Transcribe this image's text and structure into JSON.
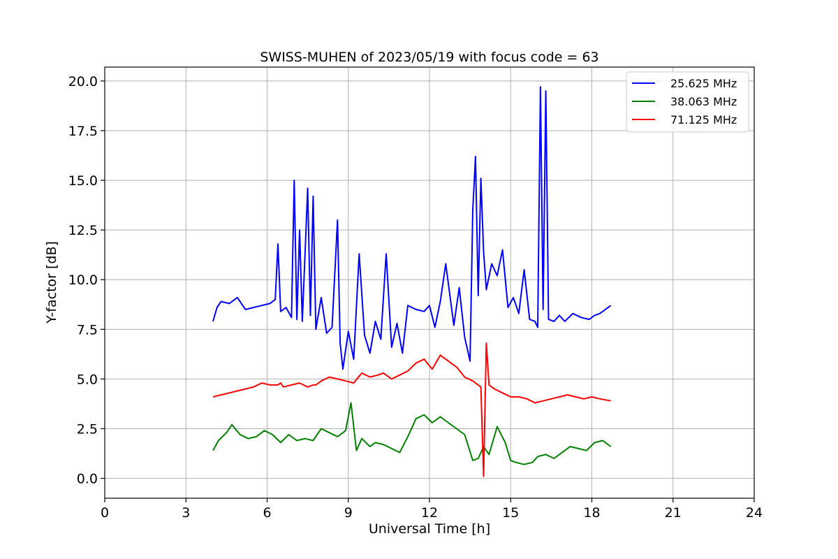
{
  "chart_data": {
    "type": "line",
    "title": "SWISS-MUHEN of 2023/05/19 with focus code = 63",
    "xlabel": "Universal Time [h]",
    "ylabel": "Y-factor [dB]",
    "xlim": [
      0,
      24
    ],
    "ylim": [
      -1.0,
      20.7
    ],
    "xticks": [
      0,
      3,
      6,
      9,
      12,
      15,
      18,
      21,
      24
    ],
    "xtick_labels": [
      "0",
      "3",
      "6",
      "9",
      "12",
      "15",
      "18",
      "21",
      "24"
    ],
    "yticks": [
      0.0,
      2.5,
      5.0,
      7.5,
      10.0,
      12.5,
      15.0,
      17.5,
      20.0
    ],
    "ytick_labels": [
      "0.0",
      "2.5",
      "5.0",
      "7.5",
      "10.0",
      "12.5",
      "15.0",
      "17.5",
      "20.0"
    ],
    "grid": true,
    "legend_position": "top-right",
    "series": [
      {
        "name": "25.625 MHz",
        "color": "#0000ff",
        "x": [
          4.0,
          4.15,
          4.3,
          4.6,
          4.9,
          5.2,
          5.5,
          5.8,
          6.1,
          6.3,
          6.4,
          6.5,
          6.7,
          6.9,
          7.0,
          7.1,
          7.2,
          7.3,
          7.5,
          7.6,
          7.7,
          7.8,
          8.0,
          8.2,
          8.4,
          8.6,
          8.7,
          8.8,
          9.0,
          9.2,
          9.4,
          9.6,
          9.8,
          10.0,
          10.2,
          10.4,
          10.6,
          10.8,
          11.0,
          11.2,
          11.5,
          11.8,
          12.0,
          12.2,
          12.4,
          12.6,
          12.9,
          13.1,
          13.3,
          13.5,
          13.6,
          13.7,
          13.8,
          13.9,
          14.0,
          14.1,
          14.3,
          14.5,
          14.7,
          14.9,
          15.1,
          15.3,
          15.5,
          15.7,
          15.9,
          16.0,
          16.1,
          16.2,
          16.3,
          16.4,
          16.6,
          16.8,
          17.0,
          17.3,
          17.6,
          17.9,
          18.1,
          18.3,
          18.5,
          18.7
        ],
        "y": [
          7.9,
          8.6,
          8.9,
          8.8,
          9.1,
          8.5,
          8.6,
          8.7,
          8.8,
          9.0,
          11.8,
          8.4,
          8.6,
          8.1,
          15.0,
          8.0,
          12.5,
          7.9,
          14.6,
          8.2,
          14.2,
          7.5,
          9.1,
          7.3,
          7.6,
          13.0,
          6.8,
          5.5,
          7.4,
          6.0,
          11.3,
          7.2,
          6.3,
          7.9,
          7.0,
          11.3,
          6.6,
          7.8,
          6.3,
          8.7,
          8.5,
          8.4,
          8.7,
          7.6,
          8.9,
          10.8,
          7.7,
          9.6,
          7.1,
          5.9,
          13.5,
          16.2,
          9.2,
          15.1,
          11.4,
          9.5,
          10.8,
          10.2,
          11.5,
          8.6,
          9.1,
          8.3,
          10.5,
          8.0,
          7.9,
          7.6,
          19.7,
          8.5,
          19.5,
          8.0,
          7.9,
          8.2,
          7.9,
          8.3,
          8.1,
          8.0,
          8.2,
          8.3,
          8.5,
          8.7
        ]
      },
      {
        "name": "38.063 MHz",
        "color": "#008000",
        "x": [
          4.0,
          4.2,
          4.5,
          4.7,
          5.0,
          5.3,
          5.6,
          5.9,
          6.2,
          6.5,
          6.8,
          7.1,
          7.4,
          7.7,
          8.0,
          8.3,
          8.6,
          8.9,
          9.1,
          9.3,
          9.5,
          9.8,
          10.0,
          10.3,
          10.6,
          10.9,
          11.2,
          11.5,
          11.8,
          12.1,
          12.4,
          12.7,
          13.0,
          13.3,
          13.6,
          13.8,
          14.0,
          14.2,
          14.5,
          14.8,
          15.0,
          15.2,
          15.5,
          15.8,
          16.0,
          16.3,
          16.6,
          16.9,
          17.2,
          17.5,
          17.8,
          18.1,
          18.4,
          18.7
        ],
        "y": [
          1.4,
          1.9,
          2.3,
          2.7,
          2.2,
          2.0,
          2.1,
          2.4,
          2.2,
          1.8,
          2.2,
          1.9,
          2.0,
          1.9,
          2.5,
          2.3,
          2.1,
          2.4,
          3.8,
          1.4,
          2.0,
          1.6,
          1.8,
          1.7,
          1.5,
          1.3,
          2.1,
          3.0,
          3.2,
          2.8,
          3.1,
          2.8,
          2.5,
          2.2,
          0.9,
          1.0,
          1.6,
          1.2,
          2.6,
          1.8,
          0.9,
          0.8,
          0.7,
          0.8,
          1.1,
          1.2,
          1.0,
          1.3,
          1.6,
          1.5,
          1.4,
          1.8,
          1.9,
          1.6
        ]
      },
      {
        "name": "71.125 MHz",
        "color": "#ff0000",
        "x": [
          4.0,
          4.3,
          4.6,
          4.9,
          5.2,
          5.5,
          5.8,
          6.1,
          6.4,
          6.5,
          6.6,
          6.9,
          7.2,
          7.5,
          7.7,
          7.8,
          8.0,
          8.3,
          8.6,
          8.9,
          9.2,
          9.5,
          9.8,
          10.1,
          10.3,
          10.6,
          10.9,
          11.2,
          11.5,
          11.8,
          12.1,
          12.4,
          12.7,
          13.0,
          13.3,
          13.6,
          13.9,
          14.0,
          14.1,
          14.2,
          14.4,
          14.7,
          15.0,
          15.3,
          15.6,
          15.9,
          16.2,
          16.5,
          16.8,
          17.1,
          17.4,
          17.7,
          18.0,
          18.3,
          18.7
        ],
        "y": [
          4.1,
          4.2,
          4.3,
          4.4,
          4.5,
          4.6,
          4.8,
          4.7,
          4.7,
          4.8,
          4.6,
          4.7,
          4.8,
          4.6,
          4.7,
          4.7,
          4.9,
          5.1,
          5.0,
          4.9,
          4.8,
          5.3,
          5.1,
          5.2,
          5.3,
          5.0,
          5.2,
          5.4,
          5.8,
          6.0,
          5.5,
          6.2,
          5.9,
          5.6,
          5.1,
          4.9,
          4.6,
          0.1,
          6.8,
          4.7,
          4.5,
          4.3,
          4.1,
          4.1,
          4.0,
          3.8,
          3.9,
          4.0,
          4.1,
          4.2,
          4.1,
          4.0,
          4.1,
          4.0,
          3.9
        ]
      }
    ]
  }
}
